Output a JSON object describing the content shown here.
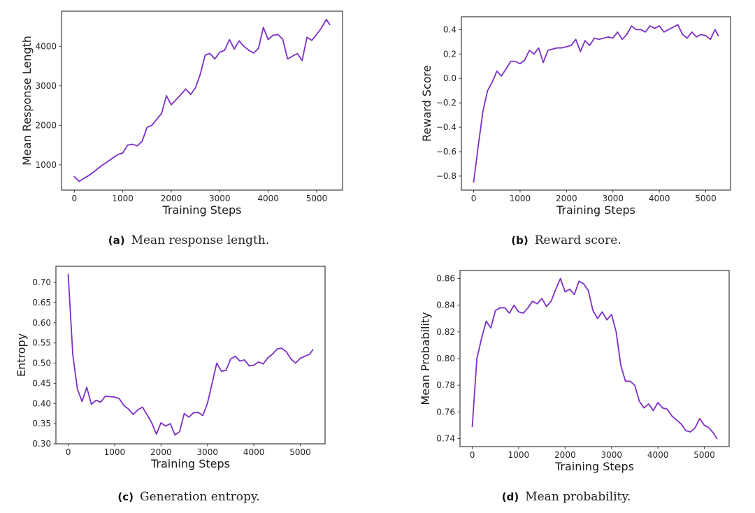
{
  "style": {
    "background": "#ffffff",
    "line_color": "#7b2fc8",
    "spine_color": "#3b3b3b",
    "tick_color": "#262626",
    "text_color": "#1a1a1a"
  },
  "chart_data": [
    {
      "type": "line",
      "id": "mean-response-length",
      "caption_label": "(a)",
      "caption_text": "Mean response length.",
      "xlabel": "Training Steps",
      "ylabel": "Mean Response Length",
      "xlim": [
        -264,
        5534
      ],
      "ylim": [
        360,
        4890
      ],
      "xticks": {
        "values": [
          0,
          1000,
          2000,
          3000,
          4000,
          5000
        ],
        "labels": [
          "0",
          "1000",
          "2000",
          "3000",
          "4000",
          "5000"
        ]
      },
      "yticks": {
        "values": [
          1000,
          2000,
          3000,
          4000
        ],
        "labels": [
          "1000",
          "2000",
          "3000",
          "4000"
        ]
      },
      "x": [
        0,
        100,
        200,
        300,
        400,
        500,
        600,
        700,
        800,
        900,
        1000,
        1100,
        1200,
        1300,
        1400,
        1500,
        1600,
        1700,
        1800,
        1900,
        2000,
        2100,
        2200,
        2300,
        2400,
        2500,
        2600,
        2700,
        2800,
        2900,
        3000,
        3100,
        3200,
        3300,
        3400,
        3500,
        3600,
        3700,
        3800,
        3900,
        4000,
        4100,
        4200,
        4300,
        4400,
        4500,
        4600,
        4700,
        4800,
        4900,
        5000,
        5100,
        5200,
        5270
      ],
      "y": [
        700,
        580,
        660,
        730,
        820,
        920,
        1010,
        1090,
        1180,
        1260,
        1300,
        1500,
        1520,
        1480,
        1600,
        1950,
        2000,
        2150,
        2300,
        2750,
        2520,
        2650,
        2780,
        2920,
        2780,
        2950,
        3300,
        3780,
        3820,
        3680,
        3850,
        3900,
        4170,
        3930,
        4140,
        4000,
        3900,
        3830,
        3950,
        4480,
        4170,
        4280,
        4300,
        4180,
        3680,
        3750,
        3820,
        3640,
        4230,
        4150,
        4300,
        4470,
        4680,
        4550
      ]
    },
    {
      "type": "line",
      "id": "reward-score",
      "caption_label": "(b)",
      "caption_text": "Reward score.",
      "xlabel": "Training Steps",
      "ylabel": "Reward Score",
      "xlim": [
        -264,
        5534
      ],
      "ylim": [
        -0.915,
        0.505
      ],
      "xticks": {
        "values": [
          0,
          1000,
          2000,
          3000,
          4000,
          5000
        ],
        "labels": [
          "0",
          "1000",
          "2000",
          "3000",
          "4000",
          "5000"
        ]
      },
      "yticks": {
        "values": [
          -0.8,
          -0.6,
          -0.4,
          -0.2,
          0.0,
          0.2,
          0.4
        ],
        "labels": [
          "−0.8",
          "−0.6",
          "−0.4",
          "−0.2",
          "0.0",
          "0.2",
          "0.4"
        ]
      },
      "x": [
        0,
        100,
        200,
        300,
        400,
        500,
        600,
        700,
        800,
        900,
        1000,
        1100,
        1200,
        1300,
        1400,
        1500,
        1600,
        1700,
        1800,
        1900,
        2000,
        2100,
        2200,
        2300,
        2400,
        2500,
        2600,
        2700,
        2800,
        2900,
        3000,
        3100,
        3200,
        3300,
        3400,
        3500,
        3600,
        3700,
        3800,
        3900,
        4000,
        4100,
        4200,
        4300,
        4400,
        4500,
        4600,
        4700,
        4800,
        4900,
        5000,
        5100,
        5200,
        5270
      ],
      "y": [
        -0.85,
        -0.55,
        -0.27,
        -0.1,
        -0.03,
        0.06,
        0.02,
        0.08,
        0.14,
        0.14,
        0.12,
        0.15,
        0.23,
        0.2,
        0.25,
        0.13,
        0.23,
        0.24,
        0.25,
        0.25,
        0.26,
        0.27,
        0.32,
        0.22,
        0.31,
        0.27,
        0.33,
        0.32,
        0.33,
        0.34,
        0.33,
        0.38,
        0.32,
        0.36,
        0.43,
        0.4,
        0.4,
        0.38,
        0.43,
        0.41,
        0.43,
        0.38,
        0.4,
        0.42,
        0.44,
        0.36,
        0.33,
        0.38,
        0.34,
        0.36,
        0.35,
        0.32,
        0.4,
        0.35
      ]
    },
    {
      "type": "line",
      "id": "generation-entropy",
      "caption_label": "(c)",
      "caption_text": "Generation entropy.",
      "xlabel": "Training Steps",
      "ylabel": "Entropy",
      "xlim": [
        -264,
        5534
      ],
      "ylim": [
        0.3,
        0.74
      ],
      "xticks": {
        "values": [
          0,
          1000,
          2000,
          3000,
          4000,
          5000
        ],
        "labels": [
          "0",
          "1000",
          "2000",
          "3000",
          "4000",
          "5000"
        ]
      },
      "yticks": {
        "values": [
          0.3,
          0.35,
          0.4,
          0.45,
          0.5,
          0.55,
          0.6,
          0.65,
          0.7
        ],
        "labels": [
          "0.30",
          "0.35",
          "0.40",
          "0.45",
          "0.50",
          "0.55",
          "0.60",
          "0.65",
          "0.70"
        ]
      },
      "x": [
        0,
        100,
        200,
        300,
        400,
        500,
        600,
        700,
        800,
        900,
        1000,
        1100,
        1200,
        1300,
        1400,
        1500,
        1600,
        1700,
        1800,
        1900,
        2000,
        2100,
        2200,
        2300,
        2400,
        2500,
        2600,
        2700,
        2800,
        2900,
        3000,
        3100,
        3200,
        3300,
        3400,
        3500,
        3600,
        3700,
        3800,
        3900,
        4000,
        4100,
        4200,
        4300,
        4400,
        4500,
        4600,
        4700,
        4800,
        4900,
        5000,
        5100,
        5200,
        5270
      ],
      "y": [
        0.72,
        0.52,
        0.435,
        0.405,
        0.44,
        0.398,
        0.408,
        0.403,
        0.418,
        0.417,
        0.416,
        0.412,
        0.395,
        0.386,
        0.373,
        0.384,
        0.391,
        0.372,
        0.352,
        0.324,
        0.352,
        0.344,
        0.35,
        0.322,
        0.33,
        0.375,
        0.366,
        0.377,
        0.378,
        0.37,
        0.4,
        0.45,
        0.5,
        0.48,
        0.482,
        0.51,
        0.517,
        0.505,
        0.508,
        0.493,
        0.495,
        0.503,
        0.498,
        0.513,
        0.522,
        0.535,
        0.537,
        0.528,
        0.51,
        0.5,
        0.512,
        0.517,
        0.522,
        0.533
      ]
    },
    {
      "type": "line",
      "id": "mean-probability",
      "caption_label": "(d)",
      "caption_text": "Mean probability.",
      "xlabel": "Training Steps",
      "ylabel": "Mean Probability",
      "xlim": [
        -264,
        5534
      ],
      "ylim": [
        0.734,
        0.866
      ],
      "xticks": {
        "values": [
          0,
          1000,
          2000,
          3000,
          4000,
          5000
        ],
        "labels": [
          "0",
          "1000",
          "2000",
          "3000",
          "4000",
          "5000"
        ]
      },
      "yticks": {
        "values": [
          0.74,
          0.76,
          0.78,
          0.8,
          0.82,
          0.84,
          0.86
        ],
        "labels": [
          "0.74",
          "0.76",
          "0.78",
          "0.80",
          "0.82",
          "0.84",
          "0.86"
        ]
      },
      "x": [
        0,
        100,
        200,
        300,
        400,
        500,
        600,
        700,
        800,
        900,
        1000,
        1100,
        1200,
        1300,
        1400,
        1500,
        1600,
        1700,
        1800,
        1900,
        2000,
        2100,
        2200,
        2300,
        2400,
        2500,
        2600,
        2700,
        2800,
        2900,
        3000,
        3100,
        3200,
        3300,
        3400,
        3500,
        3600,
        3700,
        3800,
        3900,
        4000,
        4100,
        4200,
        4300,
        4400,
        4500,
        4600,
        4700,
        4800,
        4900,
        5000,
        5100,
        5200,
        5270
      ],
      "y": [
        0.749,
        0.8,
        0.815,
        0.828,
        0.823,
        0.836,
        0.838,
        0.838,
        0.834,
        0.84,
        0.835,
        0.834,
        0.838,
        0.843,
        0.841,
        0.845,
        0.839,
        0.843,
        0.852,
        0.86,
        0.85,
        0.852,
        0.848,
        0.858,
        0.856,
        0.851,
        0.836,
        0.83,
        0.835,
        0.829,
        0.833,
        0.82,
        0.795,
        0.783,
        0.783,
        0.78,
        0.768,
        0.763,
        0.766,
        0.761,
        0.767,
        0.763,
        0.762,
        0.757,
        0.754,
        0.751,
        0.746,
        0.745,
        0.748,
        0.755,
        0.75,
        0.748,
        0.744,
        0.74
      ]
    }
  ]
}
